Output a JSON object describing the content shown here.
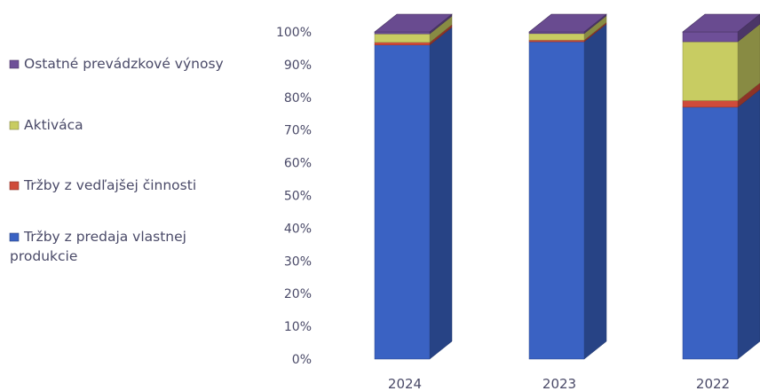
{
  "chart_data": {
    "type": "bar",
    "stacked": true,
    "normalized_percent": true,
    "three_d": true,
    "categories": [
      "2024",
      "2023",
      "2022"
    ],
    "series": [
      {
        "name": "Tržby z predaja vlastnej produkcie",
        "color": "#3a62c3",
        "values": [
          96,
          97,
          77
        ]
      },
      {
        "name": "Tržby z vedľajšej činnosti",
        "color": "#cf4b3a",
        "values": [
          0.8,
          0.5,
          2
        ]
      },
      {
        "name": "Aktiváca",
        "color": "#c8cc62",
        "values": [
          2.6,
          2,
          18
        ]
      },
      {
        "name": "Ostatné prevádzkové výnosy",
        "color": "#6e4f98",
        "values": [
          0.6,
          0.5,
          3
        ]
      }
    ],
    "yticks": [
      "0%",
      "10%",
      "20%",
      "30%",
      "40%",
      "50%",
      "60%",
      "70%",
      "80%",
      "90%",
      "100%"
    ],
    "ylim": [
      0,
      100
    ],
    "legend_position": "left",
    "grid": false
  }
}
